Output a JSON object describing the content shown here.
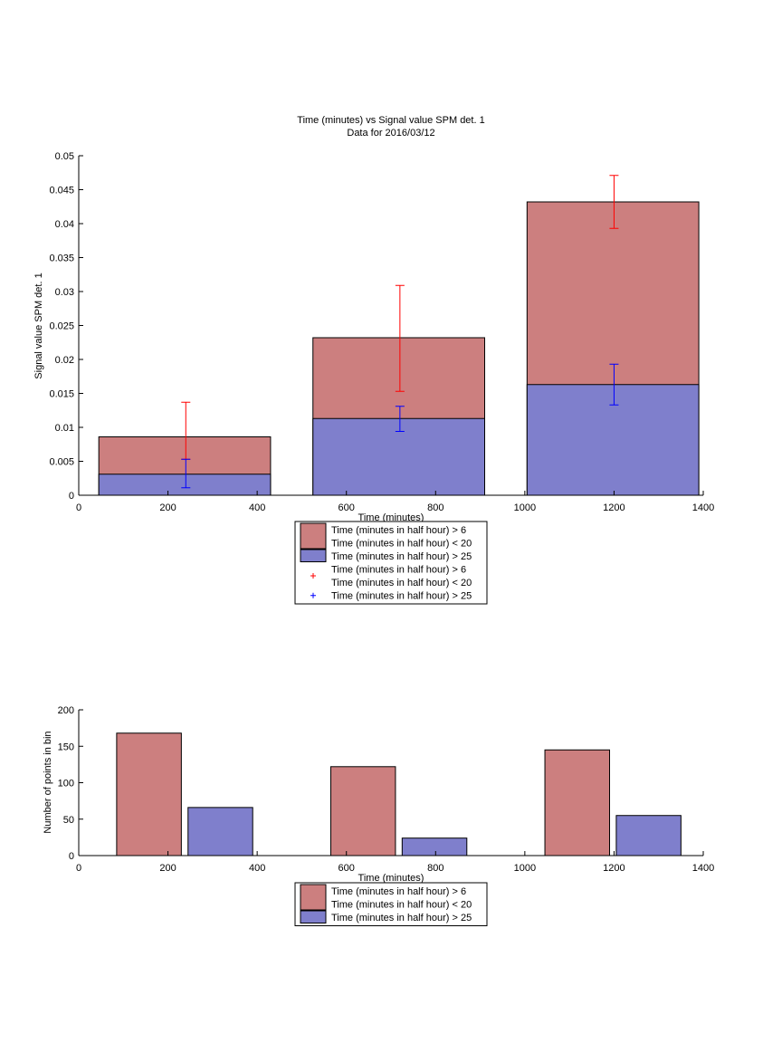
{
  "chart_data": [
    {
      "type": "bar",
      "title": "Time (minutes) vs Signal value SPM det. 1",
      "subtitle": "Data for 2016/03/12",
      "xlabel": "Time (minutes)",
      "ylabel": "Signal value SPM det. 1",
      "xlim": [
        0,
        1400
      ],
      "ylim": [
        0,
        0.05
      ],
      "xticks": [
        "0",
        "200",
        "400",
        "600",
        "800",
        "1000",
        "1200",
        "1400"
      ],
      "yticks": [
        "0",
        "0.005",
        "0.01",
        "0.015",
        "0.02",
        "0.025",
        "0.03",
        "0.035",
        "0.04",
        "0.045",
        "0.05"
      ],
      "bins": [
        {
          "x0": 45,
          "x1": 430,
          "center": 240
        },
        {
          "x0": 525,
          "x1": 910,
          "center": 720
        },
        {
          "x0": 1005,
          "x1": 1390,
          "center": 1200
        }
      ],
      "series": [
        {
          "name": "Time (minutes in half hour) > 6\nTime (minutes in half hour) < 20",
          "color": "#cc7f7f",
          "errcolor": "#ff0000",
          "values": [
            0.0086,
            0.0232,
            0.0432
          ],
          "err_low": [
            0.0053,
            0.0153,
            0.0393
          ],
          "err_high": [
            0.0137,
            0.0309,
            0.0471
          ]
        },
        {
          "name": "Time (minutes in half hour) > 25",
          "color": "#7f7fcc",
          "errcolor": "#0000ff",
          "values": [
            0.0031,
            0.0113,
            0.0163
          ],
          "err_low": [
            0.0011,
            0.0094,
            0.0133
          ],
          "err_high": [
            0.0053,
            0.0131,
            0.0193
          ]
        }
      ],
      "legend": {
        "entries": [
          {
            "kind": "patch",
            "color": "#cc7f7f",
            "lines": [
              "Time (minutes in half hour) > 6",
              "Time (minutes in half hour) < 20"
            ]
          },
          {
            "kind": "patch",
            "color": "#7f7fcc",
            "lines": [
              "Time (minutes in half hour) > 25"
            ]
          },
          {
            "kind": "marker",
            "color": "#ff0000",
            "lines": [
              "Time (minutes in half hour) > 6",
              "Time (minutes in half hour) < 20"
            ]
          },
          {
            "kind": "marker",
            "color": "#0000ff",
            "lines": [
              "Time (minutes in half hour) > 25"
            ]
          }
        ]
      }
    },
    {
      "type": "bar",
      "xlabel": "Time (minutes)",
      "ylabel": "Number of points in bin",
      "xlim": [
        0,
        1400
      ],
      "ylim": [
        0,
        200
      ],
      "xticks": [
        "0",
        "200",
        "400",
        "600",
        "800",
        "1000",
        "1200",
        "1400"
      ],
      "yticks": [
        "0",
        "50",
        "100",
        "150",
        "200"
      ],
      "bars": [
        {
          "series": 0,
          "x0": 85,
          "x1": 230,
          "value": 168
        },
        {
          "series": 1,
          "x0": 245,
          "x1": 390,
          "value": 66
        },
        {
          "series": 0,
          "x0": 565,
          "x1": 710,
          "value": 122
        },
        {
          "series": 1,
          "x0": 725,
          "x1": 870,
          "value": 24
        },
        {
          "series": 0,
          "x0": 1045,
          "x1": 1190,
          "value": 145
        },
        {
          "series": 1,
          "x0": 1205,
          "x1": 1350,
          "value": 55
        }
      ],
      "series": [
        {
          "name": "Time (minutes in half hour) > 6\nTime (minutes in half hour) < 20",
          "color": "#cc7f7f"
        },
        {
          "name": "Time (minutes in half hour) > 25",
          "color": "#7f7fcc"
        }
      ],
      "legend": {
        "entries": [
          {
            "kind": "patch",
            "color": "#cc7f7f",
            "lines": [
              "Time (minutes in half hour) > 6",
              "Time (minutes in half hour) < 20"
            ]
          },
          {
            "kind": "patch",
            "color": "#7f7fcc",
            "lines": [
              "Time (minutes in half hour) > 25"
            ]
          }
        ]
      }
    }
  ]
}
